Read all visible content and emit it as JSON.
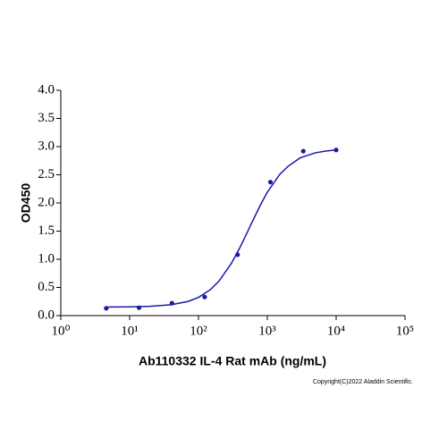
{
  "chart_data": {
    "type": "scatter",
    "x_label": "Ab110332 IL-4 Rat mAb (ng/mL)",
    "y_label": "OD450",
    "footnote": "Copyright(C)2022 Aladdin Scientific.",
    "x_log": true,
    "xlim": [
      1,
      100000
    ],
    "xticks": [
      {
        "value": 1,
        "label": "10⁰"
      },
      {
        "value": 10,
        "label": "10¹"
      },
      {
        "value": 100,
        "label": "10²"
      },
      {
        "value": 1000,
        "label": "10³"
      },
      {
        "value": 10000,
        "label": "10⁴"
      },
      {
        "value": 100000,
        "label": "10⁵"
      }
    ],
    "ylim": [
      0,
      4
    ],
    "yticks": [
      {
        "value": 0,
        "label": "0.0"
      },
      {
        "value": 0.5,
        "label": "0.5"
      },
      {
        "value": 1,
        "label": "1.0"
      },
      {
        "value": 1.5,
        "label": "1.5"
      },
      {
        "value": 2,
        "label": "2.0"
      },
      {
        "value": 2.5,
        "label": "2.5"
      },
      {
        "value": 3,
        "label": "3.0"
      },
      {
        "value": 3.5,
        "label": "3.5"
      },
      {
        "value": 4,
        "label": "4.0"
      }
    ],
    "series": [
      {
        "mode": "markers",
        "color": "#1a1aa8",
        "x": [
          4.57,
          13.7,
          41.2,
          123,
          370,
          1111,
          3333,
          10000
        ],
        "values": [
          0.13,
          0.14,
          0.22,
          0.33,
          1.08,
          2.37,
          2.92,
          2.94
        ]
      },
      {
        "mode": "line",
        "color": "#1a1aa8",
        "x": [
          4.57,
          10,
          20,
          40,
          70,
          100,
          150,
          200,
          300,
          400,
          500,
          600,
          800,
          1000,
          1500,
          2000,
          3000,
          5000,
          7000,
          10000
        ],
        "values": [
          0.151,
          0.155,
          0.164,
          0.192,
          0.25,
          0.323,
          0.463,
          0.616,
          0.925,
          1.208,
          1.452,
          1.658,
          1.97,
          2.19,
          2.5,
          2.65,
          2.8,
          2.89,
          2.92,
          2.94
        ]
      }
    ]
  }
}
